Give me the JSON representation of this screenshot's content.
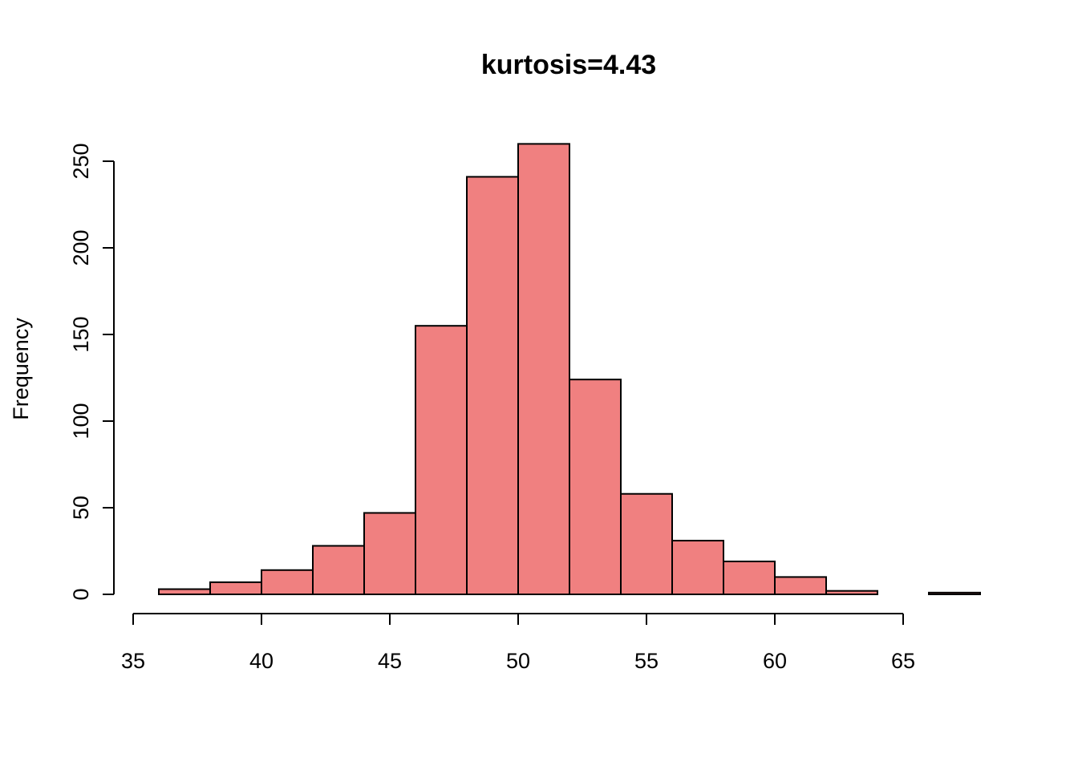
{
  "chart_data": {
    "type": "bar",
    "subtype": "histogram",
    "title": "kurtosis=4.43",
    "xlabel": "",
    "ylabel": "Frequency",
    "bar_color": "#F08080",
    "edge_color": "#000000",
    "bins": [
      {
        "start": 36,
        "end": 38,
        "count": 3
      },
      {
        "start": 38,
        "end": 40,
        "count": 7
      },
      {
        "start": 40,
        "end": 42,
        "count": 14
      },
      {
        "start": 42,
        "end": 44,
        "count": 28
      },
      {
        "start": 44,
        "end": 46,
        "count": 47
      },
      {
        "start": 46,
        "end": 48,
        "count": 155
      },
      {
        "start": 48,
        "end": 50,
        "count": 241
      },
      {
        "start": 50,
        "end": 52,
        "count": 260
      },
      {
        "start": 52,
        "end": 54,
        "count": 124
      },
      {
        "start": 54,
        "end": 56,
        "count": 58
      },
      {
        "start": 56,
        "end": 58,
        "count": 31
      },
      {
        "start": 58,
        "end": 60,
        "count": 19
      },
      {
        "start": 60,
        "end": 62,
        "count": 10
      },
      {
        "start": 62,
        "end": 64,
        "count": 2
      },
      {
        "start": 64,
        "end": 66,
        "count": 0
      },
      {
        "start": 66,
        "end": 68,
        "count": 1
      }
    ],
    "x_ticks": [
      "35",
      "40",
      "45",
      "50",
      "55",
      "60",
      "65"
    ],
    "y_ticks": [
      "0",
      "50",
      "100",
      "150",
      "200",
      "250"
    ],
    "xlim": [
      36,
      68
    ],
    "ylim": [
      0,
      250
    ],
    "grid": false
  }
}
